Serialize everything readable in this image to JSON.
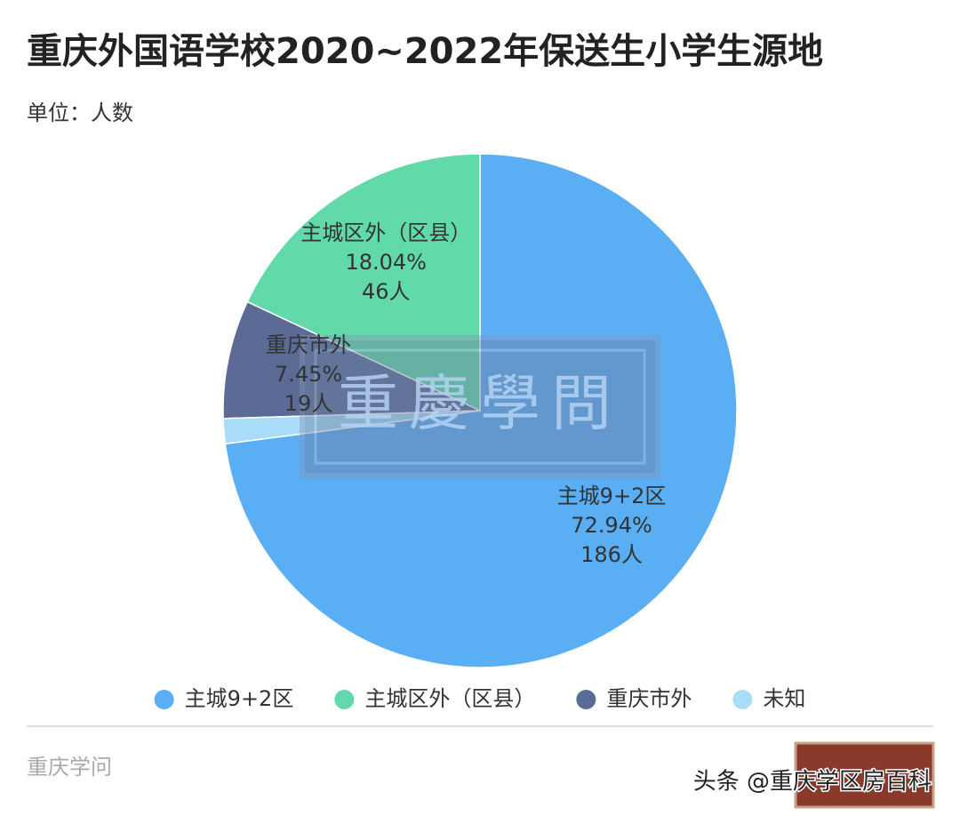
{
  "chart_data": {
    "type": "pie",
    "title": "重庆外国语学校2020~2022年保送生小学生源地",
    "subtitle": "单位：人数",
    "categories": [
      "主城9+2区",
      "主城区外（区县）",
      "重庆市外",
      "未知"
    ],
    "values": [
      72.94,
      18.04,
      7.45,
      1.57
    ],
    "value_labels": [
      "72.94%",
      "18.04%",
      "7.45%",
      null
    ],
    "counts": [
      186,
      46,
      19,
      4
    ],
    "count_labels": [
      "186人",
      "46人",
      "19人",
      null
    ],
    "colors": [
      "#5aaef4",
      "#62d9a8",
      "#5b6b96",
      "#a8dcf8"
    ],
    "direction": "counterclockwise",
    "legend": "bottom"
  },
  "footer": {
    "brand": "重庆学问",
    "watermark": "重慶學問",
    "source": "头条 @重庆学区房百科"
  }
}
